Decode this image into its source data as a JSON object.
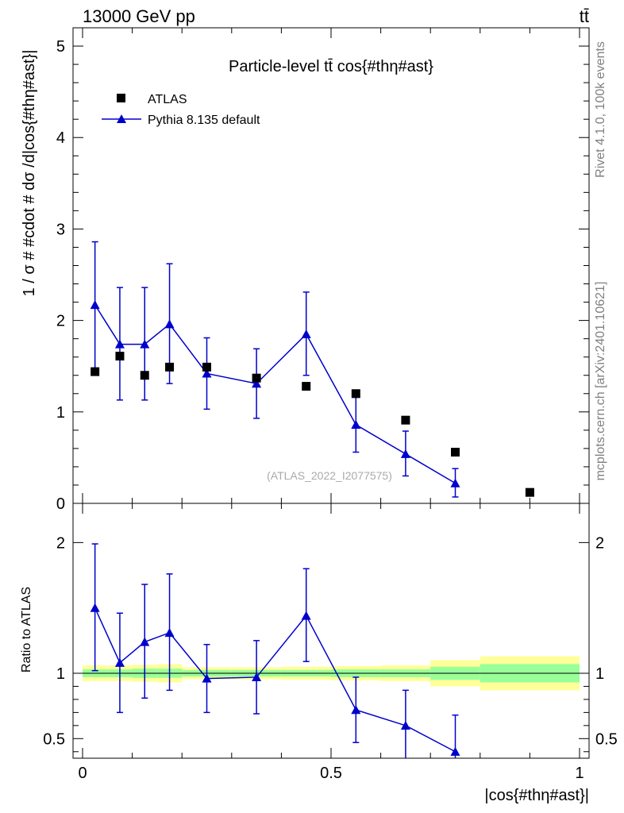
{
  "header": {
    "energy_label": "13000 GeV pp",
    "process_label": "tt̄"
  },
  "side_labels": {
    "rivet": "Rivet 4.1.0,  100k events",
    "mcplots": "mcplots.cern.ch [arXiv:2401.10621]"
  },
  "chart_data": {
    "type": "scatter",
    "title": "Particle-level tt̄ cos{#thη#ast}",
    "watermark": "(ATLAS_2022_I2077575)",
    "xlabel": "|cos{#thη#ast}|",
    "ylabel_main": "1 / σ # #cdot # dσ /d|cos{#thη#ast}|",
    "ylabel_ratio": "Ratio to ATLAS",
    "xlim": [
      0,
      1
    ],
    "main_ylim": [
      0,
      5.2
    ],
    "ratio_ylim": [
      0.35,
      2.3
    ],
    "x_ticks": [
      "0",
      "0.5",
      "1"
    ],
    "main_y_ticks": [
      "0",
      "1",
      "2",
      "3",
      "4",
      "5"
    ],
    "ratio_y_ticks": [
      "0.5",
      "1",
      "2"
    ],
    "legend": [
      {
        "name": "ATLAS",
        "marker": "square",
        "color": "#000000"
      },
      {
        "name": "Pythia 8.135 default",
        "marker": "triangle",
        "color": "#0000cc"
      }
    ],
    "bins": [
      [
        0,
        0.05
      ],
      [
        0.05,
        0.1
      ],
      [
        0.1,
        0.15
      ],
      [
        0.15,
        0.2
      ],
      [
        0.2,
        0.3
      ],
      [
        0.3,
        0.4
      ],
      [
        0.4,
        0.5
      ],
      [
        0.5,
        0.6
      ],
      [
        0.6,
        0.7
      ],
      [
        0.7,
        0.8
      ],
      [
        0.8,
        1.0
      ]
    ],
    "x": [
      0.025,
      0.075,
      0.125,
      0.175,
      0.25,
      0.35,
      0.45,
      0.55,
      0.65,
      0.75,
      0.9
    ],
    "series": [
      {
        "name": "ATLAS",
        "values": [
          1.44,
          1.61,
          1.4,
          1.49,
          1.49,
          1.37,
          1.28,
          1.2,
          0.91,
          0.56,
          0.12
        ]
      },
      {
        "name": "Pythia 8.135 default",
        "values": [
          2.17,
          1.74,
          1.74,
          1.96,
          1.42,
          1.31,
          1.85,
          0.86,
          0.54,
          0.22
        ],
        "err_low": [
          0.69,
          0.61,
          0.61,
          0.65,
          0.39,
          0.38,
          0.45,
          0.3,
          0.24,
          0.15
        ],
        "err_high": [
          0.69,
          0.62,
          0.62,
          0.66,
          0.39,
          0.38,
          0.46,
          0.3,
          0.25,
          0.16
        ]
      }
    ],
    "ratio": {
      "values": [
        1.5,
        1.08,
        1.24,
        1.31,
        0.96,
        0.97,
        1.44,
        0.72,
        0.6,
        0.4
      ],
      "err_low": [
        0.48,
        0.38,
        0.43,
        0.44,
        0.26,
        0.28,
        0.35,
        0.25,
        0.27,
        0.27
      ],
      "err_high": [
        0.49,
        0.38,
        0.44,
        0.45,
        0.26,
        0.28,
        0.36,
        0.25,
        0.27,
        0.28
      ]
    },
    "bands": {
      "green_half": [
        0.03,
        0.03,
        0.035,
        0.035,
        0.025,
        0.025,
        0.025,
        0.03,
        0.03,
        0.05,
        0.07
      ],
      "yellow_half": [
        0.06,
        0.06,
        0.065,
        0.07,
        0.045,
        0.045,
        0.05,
        0.055,
        0.06,
        0.1,
        0.13
      ]
    },
    "colors": {
      "data": "#000000",
      "mc": "#0000cc",
      "band_green": "#99ff99",
      "band_yellow": "#ffff99",
      "watermark": "#aaaaaa",
      "side_text": "#808080"
    }
  }
}
